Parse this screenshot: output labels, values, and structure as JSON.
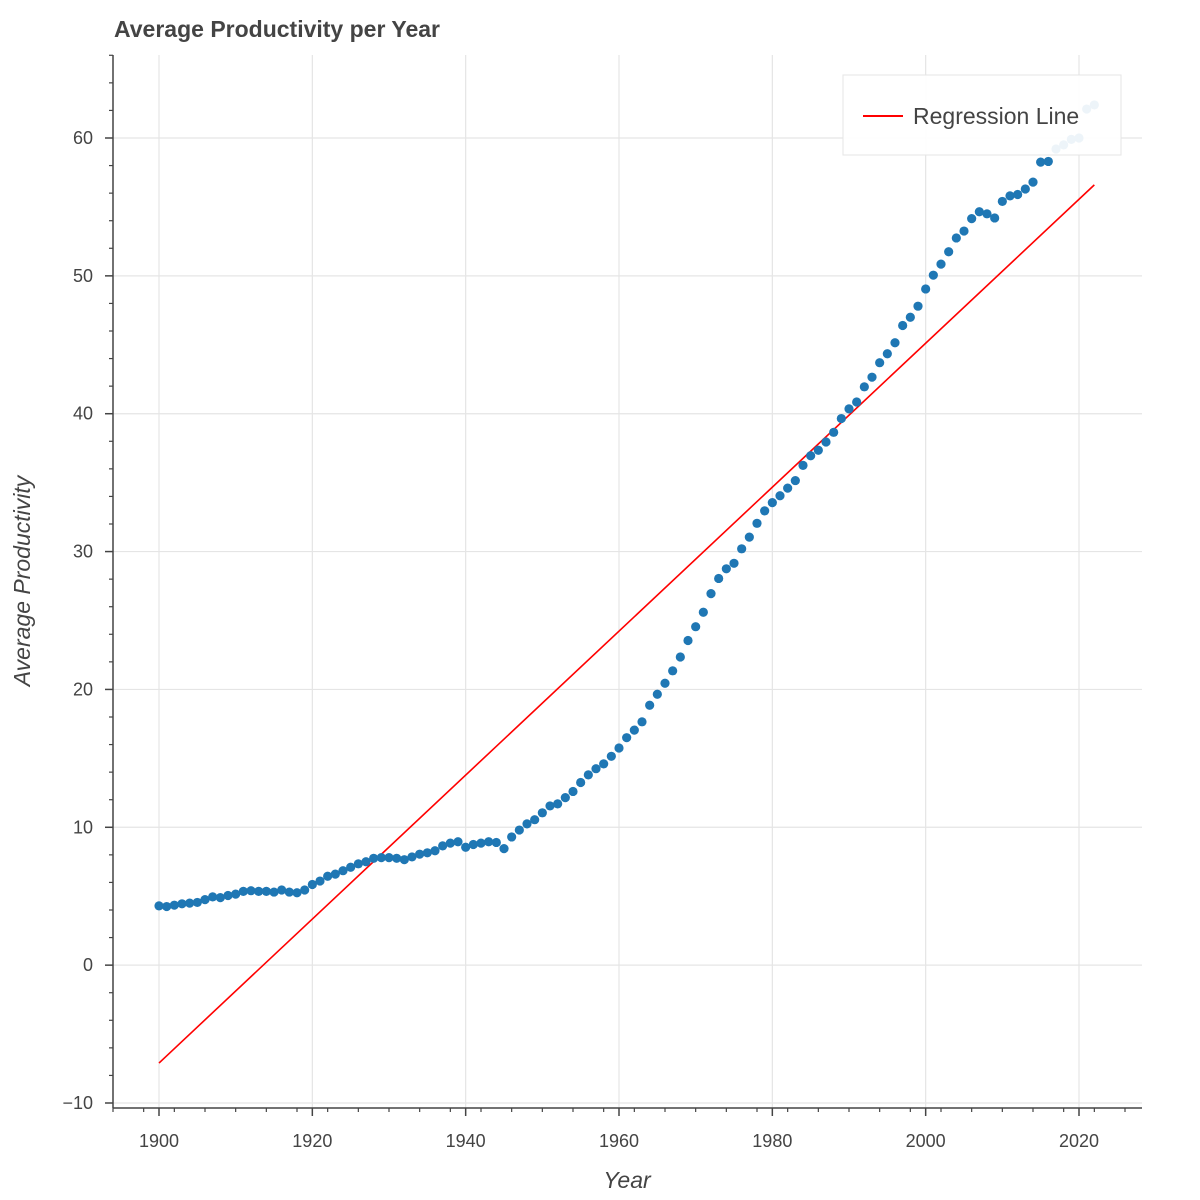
{
  "chart_data": {
    "type": "scatter",
    "title": "Average Productivity per Year",
    "xlabel": "Year",
    "ylabel": "Average Productivity",
    "xlim": [
      1894,
      2028
    ],
    "ylim": [
      -10,
      66
    ],
    "x_ticks": [
      1900,
      1920,
      1940,
      1960,
      1980,
      2000,
      2020
    ],
    "y_ticks": [
      -10,
      0,
      10,
      20,
      30,
      40,
      50,
      60
    ],
    "x_tick_labels": [
      "1900",
      "1920",
      "1940",
      "1960",
      "1980",
      "2000",
      "2020"
    ],
    "y_tick_labels": [
      "−10",
      "0",
      "10",
      "20",
      "30",
      "40",
      "50",
      "60"
    ],
    "grid": true,
    "legend": {
      "placement": "top-right",
      "entries": [
        "Regression Line"
      ]
    },
    "colors": {
      "points": "#1f77b4",
      "line": "#ff0000",
      "grid": "#e5e5e5",
      "axis": "#444444"
    },
    "series": [
      {
        "type": "scatter",
        "x": [
          1900,
          1901,
          1902,
          1903,
          1904,
          1905,
          1906,
          1907,
          1908,
          1909,
          1910,
          1911,
          1912,
          1913,
          1914,
          1915,
          1916,
          1917,
          1918,
          1919,
          1920,
          1921,
          1922,
          1923,
          1924,
          1925,
          1926,
          1927,
          1928,
          1929,
          1930,
          1931,
          1932,
          1933,
          1934,
          1935,
          1936,
          1937,
          1938,
          1939,
          1940,
          1941,
          1942,
          1943,
          1944,
          1945,
          1946,
          1947,
          1948,
          1949,
          1950,
          1951,
          1952,
          1953,
          1954,
          1955,
          1956,
          1957,
          1958,
          1959,
          1960,
          1961,
          1962,
          1963,
          1964,
          1965,
          1966,
          1967,
          1968,
          1969,
          1970,
          1971,
          1972,
          1973,
          1974,
          1975,
          1976,
          1977,
          1978,
          1979,
          1980,
          1981,
          1982,
          1983,
          1984,
          1985,
          1986,
          1987,
          1988,
          1989,
          1990,
          1991,
          1992,
          1993,
          1994,
          1995,
          1996,
          1997,
          1998,
          1999,
          2000,
          2001,
          2002,
          2003,
          2004,
          2005,
          2006,
          2007,
          2008,
          2009,
          2010,
          2011,
          2012,
          2013,
          2014,
          2015,
          2016,
          2017,
          2018,
          2019,
          2020,
          2021,
          2022
        ],
        "y": [
          4.3,
          4.25,
          4.35,
          4.45,
          4.5,
          4.55,
          4.75,
          4.95,
          4.9,
          5.05,
          5.15,
          5.35,
          5.4,
          5.35,
          5.35,
          5.3,
          5.45,
          5.3,
          5.25,
          5.45,
          5.85,
          6.1,
          6.45,
          6.6,
          6.85,
          7.1,
          7.35,
          7.5,
          7.75,
          7.8,
          7.8,
          7.75,
          7.65,
          7.85,
          8.05,
          8.15,
          8.3,
          8.65,
          8.85,
          8.95,
          8.55,
          8.75,
          8.85,
          8.95,
          8.9,
          8.45,
          9.3,
          9.8,
          10.25,
          10.55,
          11.05,
          11.55,
          11.7,
          12.15,
          12.6,
          13.25,
          13.8,
          14.25,
          14.6,
          15.15,
          15.75,
          16.5,
          17.05,
          17.65,
          18.85,
          19.65,
          20.45,
          21.35,
          22.35,
          23.55,
          24.55,
          25.6,
          26.95,
          28.05,
          28.75,
          29.15,
          30.2,
          31.05,
          32.05,
          32.95,
          33.55,
          34.05,
          34.6,
          35.15,
          36.25,
          36.95,
          37.35,
          37.95,
          38.65,
          39.65,
          40.35,
          40.85,
          41.95,
          42.65,
          43.7,
          44.35,
          45.15,
          46.4,
          47.0,
          47.8,
          49.05,
          50.05,
          50.85,
          51.75,
          52.75,
          53.25,
          54.15,
          54.65,
          54.5,
          54.2,
          55.4,
          55.8,
          55.9,
          56.3,
          56.8,
          58.25,
          58.3,
          59.2,
          59.5,
          59.9,
          60.0,
          62.1,
          62.4
        ]
      },
      {
        "type": "line",
        "name": "Regression Line",
        "x": [
          1900,
          2022
        ],
        "y": [
          -7.1,
          56.6
        ]
      }
    ]
  }
}
